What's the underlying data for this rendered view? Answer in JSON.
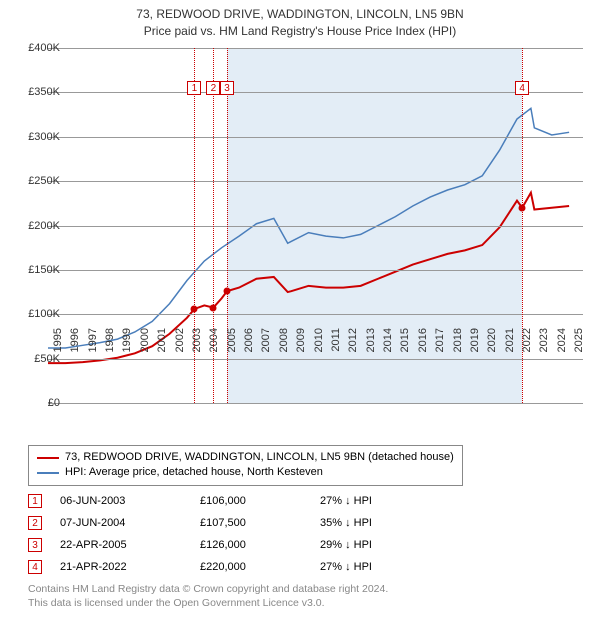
{
  "title_line1": "73, REDWOOD DRIVE, WADDINGTON, LINCOLN, LN5 9BN",
  "title_line2": "Price paid vs. HM Land Registry's House Price Index (HPI)",
  "chart": {
    "type": "line",
    "x_start": 1995,
    "x_end": 2025.8,
    "x_ticks": [
      1995,
      1996,
      1997,
      1998,
      1999,
      2000,
      2001,
      2002,
      2003,
      2004,
      2005,
      2006,
      2007,
      2008,
      2009,
      2010,
      2011,
      2012,
      2013,
      2014,
      2015,
      2016,
      2017,
      2018,
      2019,
      2020,
      2021,
      2022,
      2023,
      2024,
      2025
    ],
    "y_min": 0,
    "y_max": 400000,
    "y_ticks": [
      0,
      50000,
      100000,
      150000,
      200000,
      250000,
      300000,
      350000,
      400000
    ],
    "y_tick_labels": [
      "£0",
      "£50K",
      "£100K",
      "£150K",
      "£200K",
      "£250K",
      "£300K",
      "£350K",
      "£400K"
    ],
    "grid_color": "#999999",
    "background_color": "#ffffff",
    "shade_color": "#6699cc",
    "shade_start": 2005.31,
    "shade_end": 2022.3,
    "series": [
      {
        "id": "property",
        "color": "#cc0000",
        "width": 2,
        "label": "73, REDWOOD DRIVE, WADDINGTON, LINCOLN, LN5 9BN (detached house)",
        "points": [
          [
            1995,
            45000
          ],
          [
            1996,
            45000
          ],
          [
            1997,
            46000
          ],
          [
            1998,
            48000
          ],
          [
            1999,
            51000
          ],
          [
            2000,
            56000
          ],
          [
            2001,
            64000
          ],
          [
            2002,
            78000
          ],
          [
            2003,
            96000
          ],
          [
            2003.43,
            106000
          ],
          [
            2004,
            110000
          ],
          [
            2004.52,
            107500
          ],
          [
            2005,
            118000
          ],
          [
            2005.31,
            126000
          ],
          [
            2006,
            130000
          ],
          [
            2007,
            140000
          ],
          [
            2008,
            142000
          ],
          [
            2008.8,
            125000
          ],
          [
            2009,
            126000
          ],
          [
            2010,
            132000
          ],
          [
            2011,
            130000
          ],
          [
            2012,
            130000
          ],
          [
            2013,
            132000
          ],
          [
            2014,
            140000
          ],
          [
            2015,
            148000
          ],
          [
            2016,
            156000
          ],
          [
            2017,
            162000
          ],
          [
            2018,
            168000
          ],
          [
            2019,
            172000
          ],
          [
            2020,
            178000
          ],
          [
            2021,
            198000
          ],
          [
            2022,
            228000
          ],
          [
            2022.3,
            220000
          ],
          [
            2022.8,
            237000
          ],
          [
            2023,
            218000
          ],
          [
            2024,
            220000
          ],
          [
            2025,
            222000
          ]
        ]
      },
      {
        "id": "hpi",
        "color": "#4a7ebb",
        "width": 1.5,
        "label": "HPI: Average price, detached house, North Kesteven",
        "points": [
          [
            1995,
            62000
          ],
          [
            1996,
            62000
          ],
          [
            1997,
            65000
          ],
          [
            1998,
            68000
          ],
          [
            1999,
            72000
          ],
          [
            2000,
            80000
          ],
          [
            2001,
            92000
          ],
          [
            2002,
            112000
          ],
          [
            2003,
            138000
          ],
          [
            2004,
            160000
          ],
          [
            2005,
            175000
          ],
          [
            2006,
            188000
          ],
          [
            2007,
            202000
          ],
          [
            2008,
            208000
          ],
          [
            2008.8,
            180000
          ],
          [
            2009,
            182000
          ],
          [
            2010,
            192000
          ],
          [
            2011,
            188000
          ],
          [
            2012,
            186000
          ],
          [
            2013,
            190000
          ],
          [
            2014,
            200000
          ],
          [
            2015,
            210000
          ],
          [
            2016,
            222000
          ],
          [
            2017,
            232000
          ],
          [
            2018,
            240000
          ],
          [
            2019,
            246000
          ],
          [
            2020,
            256000
          ],
          [
            2021,
            285000
          ],
          [
            2022,
            320000
          ],
          [
            2022.8,
            332000
          ],
          [
            2023,
            310000
          ],
          [
            2024,
            302000
          ],
          [
            2025,
            305000
          ]
        ]
      }
    ],
    "sales": [
      {
        "n": "1",
        "year": 2003.43,
        "price": 106000,
        "marker_top_y": 355000
      },
      {
        "n": "2",
        "year": 2004.52,
        "price": 107500,
        "marker_top_y": 355000
      },
      {
        "n": "3",
        "year": 2005.31,
        "price": 126000,
        "marker_top_y": 355000
      },
      {
        "n": "4",
        "year": 2022.3,
        "price": 220000,
        "marker_top_y": 355000
      }
    ],
    "marker_border": "#cc0000",
    "dash_color": "#cc0000"
  },
  "legend": {
    "items": [
      {
        "color": "#cc0000",
        "label": "73, REDWOOD DRIVE, WADDINGTON, LINCOLN, LN5 9BN (detached house)"
      },
      {
        "color": "#4a7ebb",
        "label": "HPI: Average price, detached house, North Kesteven"
      }
    ]
  },
  "table": {
    "rows": [
      {
        "n": "1",
        "date": "06-JUN-2003",
        "price": "£106,000",
        "pct": "27% ↓ HPI"
      },
      {
        "n": "2",
        "date": "07-JUN-2004",
        "price": "£107,500",
        "pct": "35% ↓ HPI"
      },
      {
        "n": "3",
        "date": "22-APR-2005",
        "price": "£126,000",
        "pct": "29% ↓ HPI"
      },
      {
        "n": "4",
        "date": "21-APR-2022",
        "price": "£220,000",
        "pct": "27% ↓ HPI"
      }
    ]
  },
  "footer_line1": "Contains HM Land Registry data © Crown copyright and database right 2024.",
  "footer_line2": "This data is licensed under the Open Government Licence v3.0."
}
